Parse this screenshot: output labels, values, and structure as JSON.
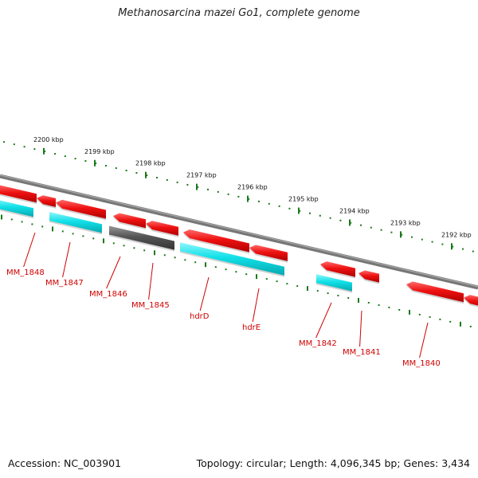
{
  "title": "Methanosarcina mazei Go1, complete genome",
  "footer": {
    "accession": "Accession: NC_003901",
    "stats": "Topology: circular; Length: 4,096,345 bp; Genes: 3,434"
  },
  "colors": {
    "forward_gene": "#ee1111",
    "reverse_gene": "#11e0e8",
    "other_gene": "#555555",
    "tick": "#1b7a1b",
    "backbone": "#777777",
    "label": "#d00000"
  },
  "scale_ticks": [
    {
      "label": "2200 kbp"
    },
    {
      "label": "2199 kbp"
    },
    {
      "label": "2198 kbp"
    },
    {
      "label": "2197 kbp"
    },
    {
      "label": "2196 kbp"
    },
    {
      "label": "2195 kbp"
    },
    {
      "label": "2194 kbp"
    },
    {
      "label": "2193 kbp"
    },
    {
      "label": "2192 kbp"
    }
  ],
  "gene_labels": [
    "MM_1848",
    "MM_1847",
    "MM_1846",
    "MM_1845",
    "hdrD",
    "hdrE",
    "MM_1842",
    "MM_1841",
    "MM_1840"
  ]
}
